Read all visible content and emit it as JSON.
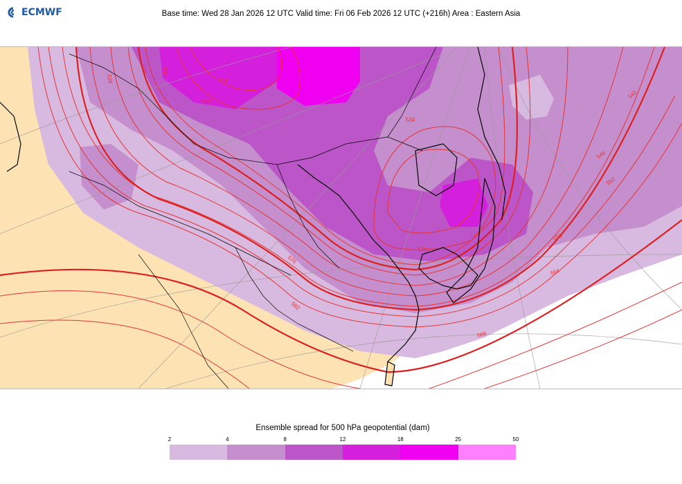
{
  "brand": {
    "name": "ECMWF",
    "logo_color": "#1f5aa6"
  },
  "header": {
    "text": "Base time: Wed 28 Jan 2026 12 UTC Valid time: Fri 06 Feb 2026 12 UTC (+216h) Area : Eastern Asia"
  },
  "map": {
    "land_color": "#fde3b3",
    "contour_color": "#e63333",
    "contour_labels": [
      {
        "text": "510"
      },
      {
        "text": "510"
      },
      {
        "text": "516"
      },
      {
        "text": "522"
      },
      {
        "text": "528"
      },
      {
        "text": "534"
      },
      {
        "text": "540"
      },
      {
        "text": "546"
      },
      {
        "text": "552"
      },
      {
        "text": "558"
      },
      {
        "text": "564"
      },
      {
        "text": "570"
      },
      {
        "text": "576"
      },
      {
        "text": "582"
      },
      {
        "text": "588"
      }
    ]
  },
  "legend": {
    "title": "Ensemble spread for 500 hPa geopotential (dam)",
    "ticks": [
      "2",
      "4",
      "8",
      "12",
      "18",
      "25",
      "50"
    ],
    "colors": [
      "#d8b9df",
      "#c48fcc",
      "#bb55c8",
      "#d41fdc",
      "#f000f0",
      "#ff80ff"
    ]
  }
}
